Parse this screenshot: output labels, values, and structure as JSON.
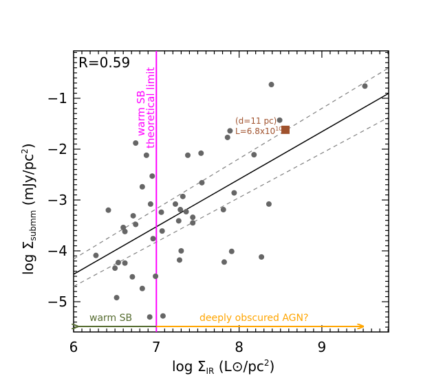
{
  "chart_data": {
    "type": "scatter",
    "title": "",
    "xlabel": "log Σ_IR (L⊙/pc²)",
    "ylabel": "log Σ_submm (mJy/pc²)",
    "xlim": [
      6.0,
      9.8
    ],
    "ylim": [
      -5.55,
      -0.05
    ],
    "x_ticks": [
      6,
      7,
      8,
      9
    ],
    "y_ticks": [
      -1,
      -2,
      -3,
      -4,
      -5
    ],
    "grid": false,
    "annotation_R": "R=0.59",
    "vertical_line": {
      "x": 7.0,
      "color": "#ff00ff",
      "label_line1": "warm SB",
      "label_line2": "theoretical limit"
    },
    "fit_line": {
      "x": [
        6.0,
        9.8
      ],
      "y": [
        -4.46,
        -0.91
      ],
      "color": "#000000"
    },
    "confidence_upper": {
      "x": [
        6.0,
        9.8
      ],
      "y": [
        -4.16,
        -0.41
      ],
      "color": "#808080"
    },
    "confidence_lower": {
      "x": [
        6.0,
        9.8
      ],
      "y": [
        -4.7,
        -1.38
      ],
      "color": "#808080"
    },
    "highlight_point": {
      "x": 8.56,
      "y": -1.62,
      "color": "#a0522d",
      "label_line1": "(d=11 pc)",
      "label_line2": "L=6.8x10",
      "label_exp": "10"
    },
    "arrows": [
      {
        "label": "warm SB",
        "from": 7.0,
        "to": 6.05,
        "color": "#556b2f"
      },
      {
        "label": "deeply obscured AGN?",
        "from": 7.0,
        "to": 9.5,
        "color": "#ffa500"
      }
    ],
    "series": [
      {
        "name": "sources",
        "color": "#666666",
        "points": [
          [
            6.75,
            -1.88
          ],
          [
            6.88,
            -2.12
          ],
          [
            6.95,
            -2.53
          ],
          [
            6.83,
            -2.74
          ],
          [
            6.93,
            -3.08
          ],
          [
            6.42,
            -3.2
          ],
          [
            6.72,
            -3.31
          ],
          [
            7.06,
            -3.24
          ],
          [
            6.75,
            -3.48
          ],
          [
            6.6,
            -3.54
          ],
          [
            6.62,
            -3.62
          ],
          [
            7.07,
            -3.61
          ],
          [
            6.96,
            -3.76
          ],
          [
            6.27,
            -4.09
          ],
          [
            6.54,
            -4.23
          ],
          [
            6.5,
            -4.34
          ],
          [
            6.62,
            -4.24
          ],
          [
            6.71,
            -4.51
          ],
          [
            6.99,
            -4.5
          ],
          [
            6.83,
            -4.74
          ],
          [
            6.52,
            -4.92
          ],
          [
            6.92,
            -5.3
          ],
          [
            7.08,
            -5.28
          ],
          [
            7.38,
            -2.12
          ],
          [
            7.54,
            -2.08
          ],
          [
            7.55,
            -2.66
          ],
          [
            7.32,
            -2.93
          ],
          [
            7.23,
            -3.08
          ],
          [
            7.29,
            -3.19
          ],
          [
            7.36,
            -3.23
          ],
          [
            7.27,
            -3.41
          ],
          [
            7.44,
            -3.34
          ],
          [
            7.44,
            -3.45
          ],
          [
            7.3,
            -4.0
          ],
          [
            7.28,
            -4.18
          ],
          [
            7.91,
            -4.01
          ],
          [
            7.82,
            -4.22
          ],
          [
            8.27,
            -4.12
          ],
          [
            8.39,
            -0.73
          ],
          [
            8.49,
            -1.43
          ],
          [
            7.89,
            -1.64
          ],
          [
            7.86,
            -1.77
          ],
          [
            8.18,
            -2.11
          ],
          [
            7.94,
            -2.86
          ],
          [
            8.36,
            -3.08
          ],
          [
            7.81,
            -3.19
          ],
          [
            9.52,
            -0.76
          ]
        ]
      }
    ]
  }
}
